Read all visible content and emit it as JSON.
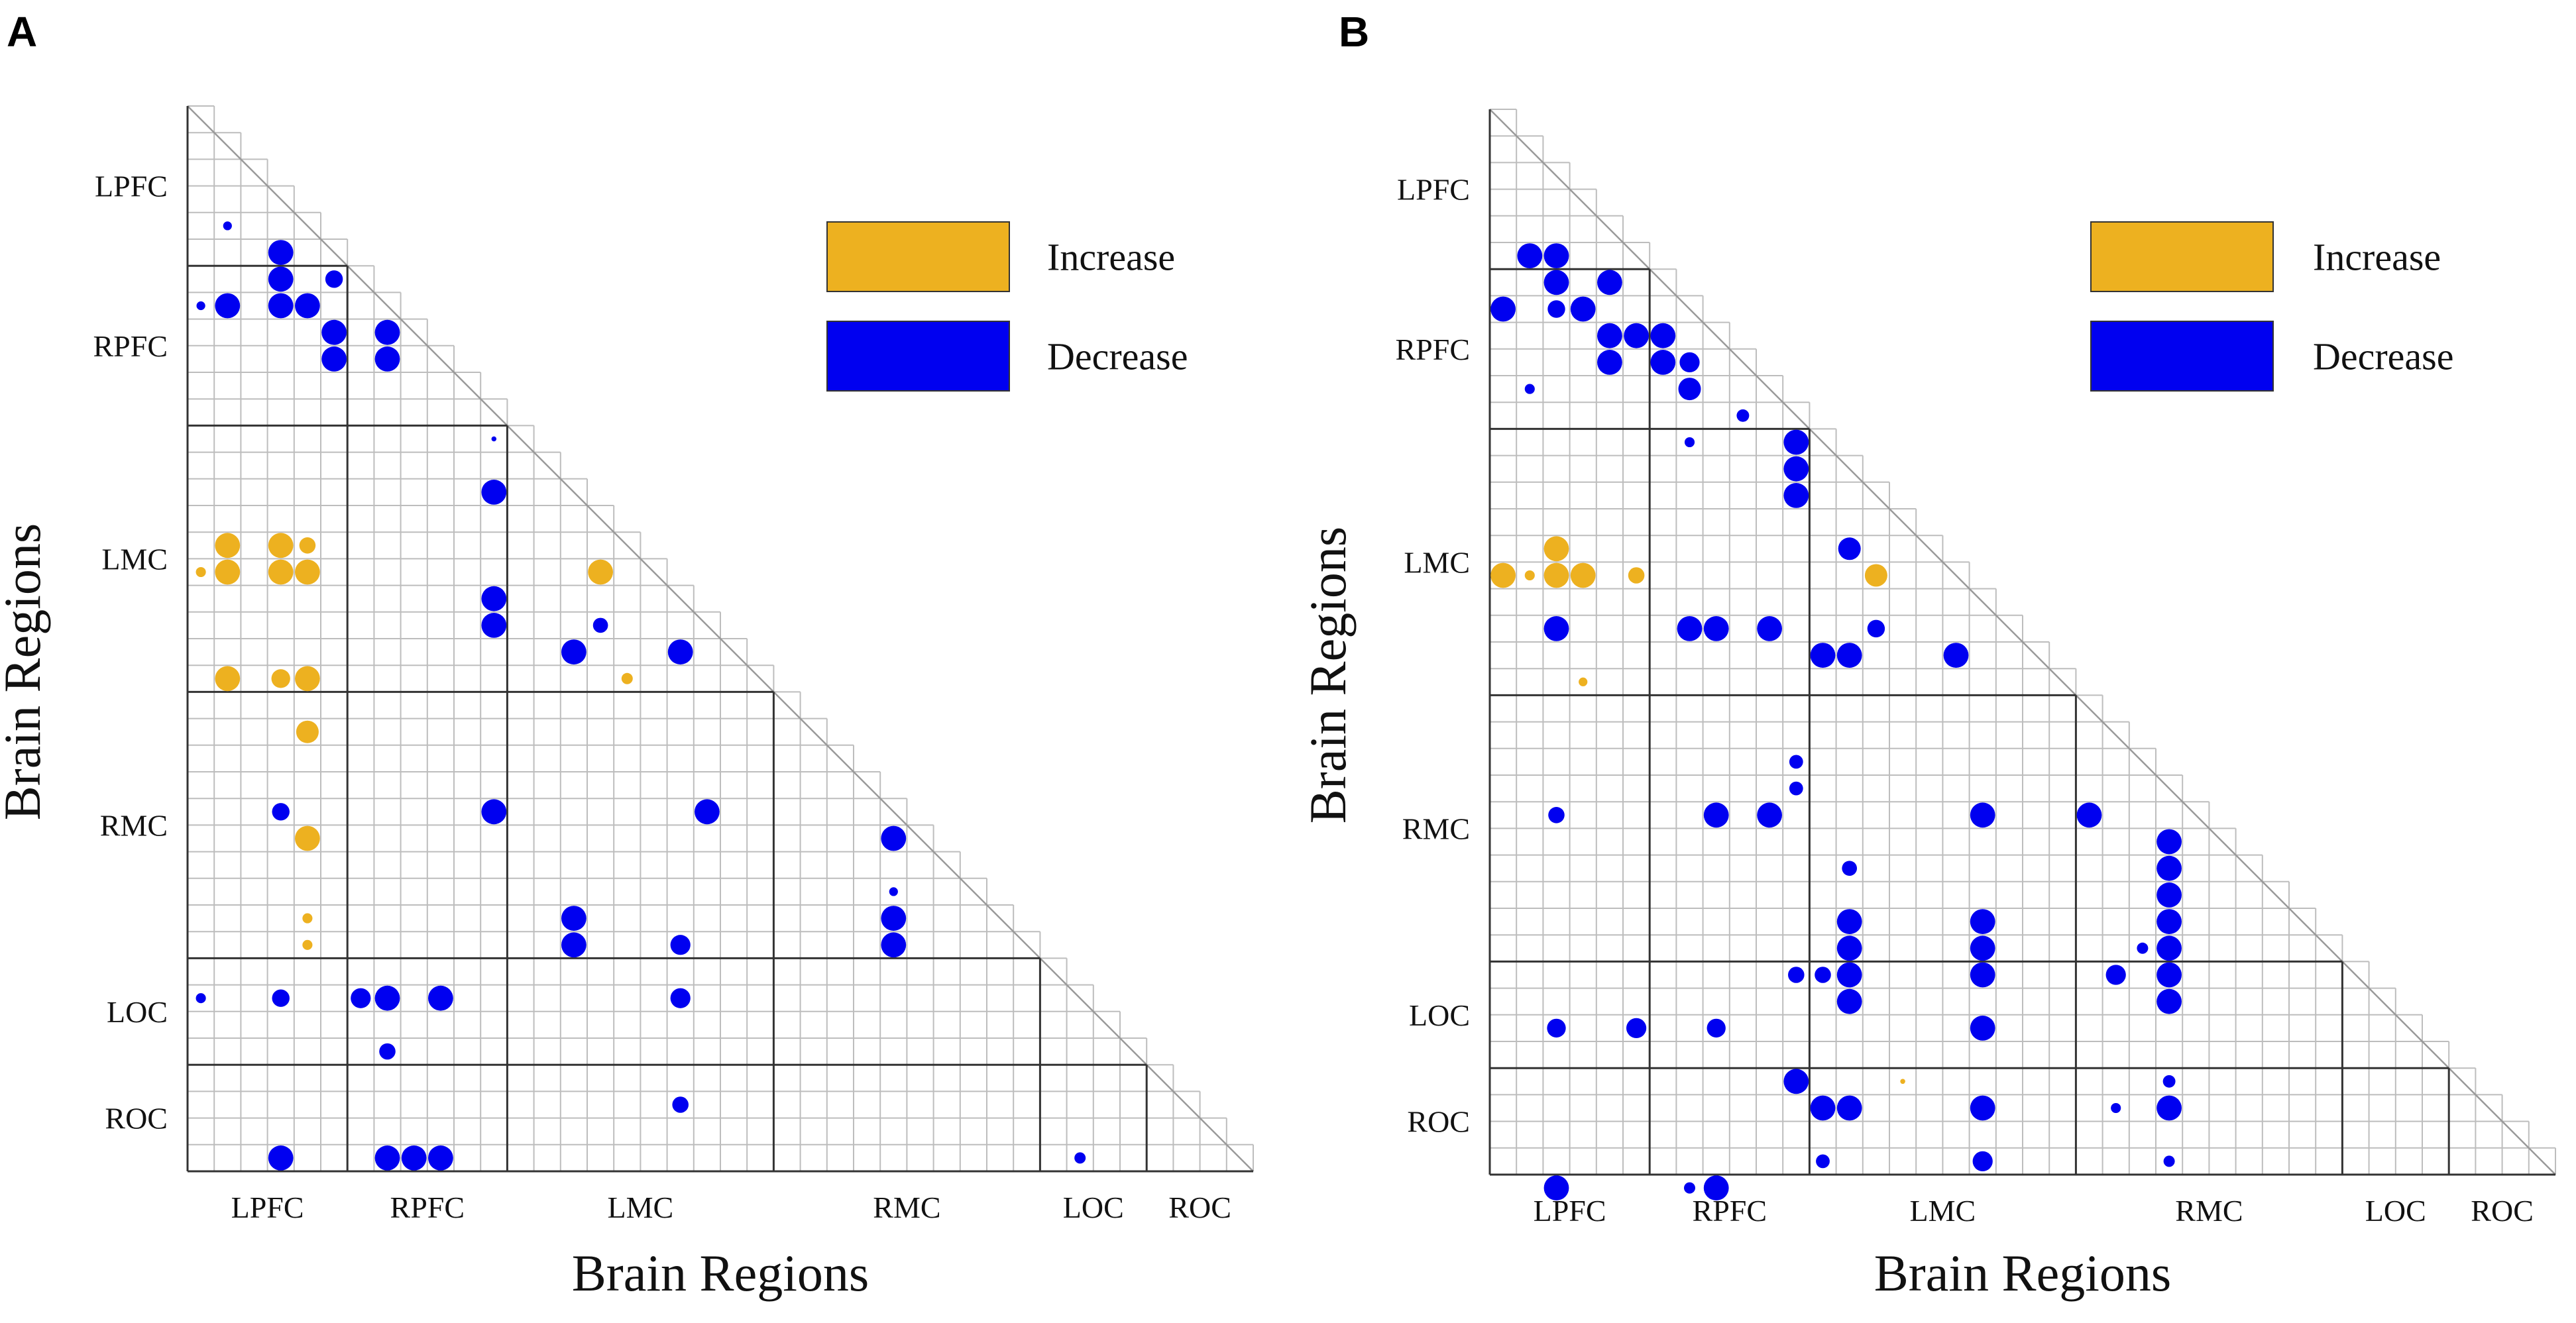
{
  "figure": {
    "colors": {
      "increase": "#EDB120",
      "decrease": "#0000F0",
      "grid": "#BDBDBD",
      "divider": "#333333"
    }
  },
  "chart_data": [
    {
      "type": "heatmap",
      "panel": "A",
      "xlabel": "Brain Regions",
      "ylabel": "Brain Regions",
      "n": 40,
      "regions": [
        {
          "name": "LPFC",
          "start": 0,
          "end": 6
        },
        {
          "name": "RPFC",
          "start": 6,
          "end": 12
        },
        {
          "name": "LMC",
          "start": 12,
          "end": 22
        },
        {
          "name": "RMC",
          "start": 22,
          "end": 32
        },
        {
          "name": "LOC",
          "start": 32,
          "end": 36
        },
        {
          "name": "ROC",
          "start": 36,
          "end": 40
        }
      ],
      "legend": [
        {
          "label": "Increase",
          "key": "increase"
        },
        {
          "label": "Decrease",
          "key": "decrease"
        }
      ],
      "points": [
        {
          "row": 4,
          "col": 1,
          "size": 0.35,
          "kind": "decrease"
        },
        {
          "row": 5,
          "col": 3,
          "size": 1,
          "kind": "decrease"
        },
        {
          "row": 6,
          "col": 3,
          "size": 1,
          "kind": "decrease"
        },
        {
          "row": 6,
          "col": 5,
          "size": 0.7,
          "kind": "decrease"
        },
        {
          "row": 7,
          "col": 0,
          "size": 0.35,
          "kind": "decrease"
        },
        {
          "row": 7,
          "col": 1,
          "size": 1,
          "kind": "decrease"
        },
        {
          "row": 7,
          "col": 3,
          "size": 1,
          "kind": "decrease"
        },
        {
          "row": 7,
          "col": 4,
          "size": 1,
          "kind": "decrease"
        },
        {
          "row": 8,
          "col": 5,
          "size": 1,
          "kind": "decrease"
        },
        {
          "row": 8,
          "col": 7,
          "size": 1,
          "kind": "decrease"
        },
        {
          "row": 9,
          "col": 5,
          "size": 1,
          "kind": "decrease"
        },
        {
          "row": 9,
          "col": 7,
          "size": 1,
          "kind": "decrease"
        },
        {
          "row": 12,
          "col": 11,
          "size": 0.2,
          "kind": "decrease"
        },
        {
          "row": 14,
          "col": 11,
          "size": 1,
          "kind": "decrease"
        },
        {
          "row": 16,
          "col": 1,
          "size": 1,
          "kind": "increase"
        },
        {
          "row": 16,
          "col": 3,
          "size": 1,
          "kind": "increase"
        },
        {
          "row": 16,
          "col": 4,
          "size": 0.65,
          "kind": "increase"
        },
        {
          "row": 17,
          "col": 0,
          "size": 0.4,
          "kind": "increase"
        },
        {
          "row": 17,
          "col": 1,
          "size": 1,
          "kind": "increase"
        },
        {
          "row": 17,
          "col": 3,
          "size": 1,
          "kind": "increase"
        },
        {
          "row": 17,
          "col": 4,
          "size": 1,
          "kind": "increase"
        },
        {
          "row": 17,
          "col": 15,
          "size": 1,
          "kind": "increase"
        },
        {
          "row": 18,
          "col": 11,
          "size": 1,
          "kind": "decrease"
        },
        {
          "row": 19,
          "col": 11,
          "size": 1,
          "kind": "decrease"
        },
        {
          "row": 19,
          "col": 15,
          "size": 0.6,
          "kind": "decrease"
        },
        {
          "row": 20,
          "col": 14,
          "size": 1,
          "kind": "decrease"
        },
        {
          "row": 20,
          "col": 18,
          "size": 1,
          "kind": "decrease"
        },
        {
          "row": 21,
          "col": 1,
          "size": 1,
          "kind": "increase"
        },
        {
          "row": 21,
          "col": 3,
          "size": 0.75,
          "kind": "increase"
        },
        {
          "row": 21,
          "col": 4,
          "size": 1,
          "kind": "increase"
        },
        {
          "row": 21,
          "col": 16,
          "size": 0.45,
          "kind": "increase"
        },
        {
          "row": 23,
          "col": 4,
          "size": 0.9,
          "kind": "increase"
        },
        {
          "row": 26,
          "col": 3,
          "size": 0.7,
          "kind": "decrease"
        },
        {
          "row": 26,
          "col": 11,
          "size": 1,
          "kind": "decrease"
        },
        {
          "row": 26,
          "col": 19,
          "size": 1,
          "kind": "decrease"
        },
        {
          "row": 27,
          "col": 4,
          "size": 1,
          "kind": "increase"
        },
        {
          "row": 27,
          "col": 26,
          "size": 1,
          "kind": "decrease"
        },
        {
          "row": 29,
          "col": 26,
          "size": 0.35,
          "kind": "decrease"
        },
        {
          "row": 30,
          "col": 4,
          "size": 0.4,
          "kind": "increase"
        },
        {
          "row": 30,
          "col": 14,
          "size": 1,
          "kind": "decrease"
        },
        {
          "row": 30,
          "col": 26,
          "size": 1,
          "kind": "decrease"
        },
        {
          "row": 31,
          "col": 4,
          "size": 0.4,
          "kind": "increase"
        },
        {
          "row": 31,
          "col": 14,
          "size": 1,
          "kind": "decrease"
        },
        {
          "row": 31,
          "col": 18,
          "size": 0.8,
          "kind": "decrease"
        },
        {
          "row": 31,
          "col": 26,
          "size": 1,
          "kind": "decrease"
        },
        {
          "row": 33,
          "col": 0,
          "size": 0.4,
          "kind": "decrease"
        },
        {
          "row": 33,
          "col": 3,
          "size": 0.7,
          "kind": "decrease"
        },
        {
          "row": 33,
          "col": 6,
          "size": 0.8,
          "kind": "decrease"
        },
        {
          "row": 33,
          "col": 7,
          "size": 1,
          "kind": "decrease"
        },
        {
          "row": 33,
          "col": 9,
          "size": 1,
          "kind": "decrease"
        },
        {
          "row": 33,
          "col": 18,
          "size": 0.8,
          "kind": "decrease"
        },
        {
          "row": 35,
          "col": 7,
          "size": 0.65,
          "kind": "decrease"
        },
        {
          "row": 37,
          "col": 18,
          "size": 0.65,
          "kind": "decrease"
        },
        {
          "row": 39,
          "col": 3,
          "size": 1,
          "kind": "decrease"
        },
        {
          "row": 39,
          "col": 7,
          "size": 1,
          "kind": "decrease"
        },
        {
          "row": 39,
          "col": 8,
          "size": 1,
          "kind": "decrease"
        },
        {
          "row": 39,
          "col": 9,
          "size": 1,
          "kind": "decrease"
        },
        {
          "row": 39,
          "col": 33,
          "size": 0.45,
          "kind": "decrease"
        }
      ]
    },
    {
      "type": "heatmap",
      "panel": "B",
      "xlabel": "Brain Regions",
      "ylabel": "Brain Regions",
      "n": 40,
      "regions": [
        {
          "name": "LPFC",
          "start": 0,
          "end": 6
        },
        {
          "name": "RPFC",
          "start": 6,
          "end": 12
        },
        {
          "name": "LMC",
          "start": 12,
          "end": 22
        },
        {
          "name": "RMC",
          "start": 22,
          "end": 32
        },
        {
          "name": "LOC",
          "start": 32,
          "end": 36
        },
        {
          "name": "ROC",
          "start": 36,
          "end": 40
        }
      ],
      "legend": [
        {
          "label": "Increase",
          "key": "increase"
        },
        {
          "label": "Decrease",
          "key": "decrease"
        }
      ],
      "points": [
        {
          "row": 5,
          "col": 1,
          "size": 1,
          "kind": "decrease"
        },
        {
          "row": 5,
          "col": 2,
          "size": 1,
          "kind": "decrease"
        },
        {
          "row": 6,
          "col": 2,
          "size": 1,
          "kind": "decrease"
        },
        {
          "row": 6,
          "col": 4,
          "size": 1,
          "kind": "decrease"
        },
        {
          "row": 7,
          "col": 0,
          "size": 1,
          "kind": "decrease"
        },
        {
          "row": 7,
          "col": 2,
          "size": 0.7,
          "kind": "decrease"
        },
        {
          "row": 7,
          "col": 3,
          "size": 1,
          "kind": "decrease"
        },
        {
          "row": 8,
          "col": 4,
          "size": 1,
          "kind": "decrease"
        },
        {
          "row": 8,
          "col": 5,
          "size": 1,
          "kind": "decrease"
        },
        {
          "row": 8,
          "col": 6,
          "size": 1,
          "kind": "decrease"
        },
        {
          "row": 9,
          "col": 4,
          "size": 1,
          "kind": "decrease"
        },
        {
          "row": 9,
          "col": 6,
          "size": 1,
          "kind": "decrease"
        },
        {
          "row": 9,
          "col": 7,
          "size": 0.8,
          "kind": "decrease"
        },
        {
          "row": 10,
          "col": 1,
          "size": 0.4,
          "kind": "decrease"
        },
        {
          "row": 10,
          "col": 7,
          "size": 0.9,
          "kind": "decrease"
        },
        {
          "row": 11,
          "col": 9,
          "size": 0.5,
          "kind": "decrease"
        },
        {
          "row": 12,
          "col": 7,
          "size": 0.4,
          "kind": "decrease"
        },
        {
          "row": 12,
          "col": 11,
          "size": 1,
          "kind": "decrease"
        },
        {
          "row": 13,
          "col": 11,
          "size": 1,
          "kind": "decrease"
        },
        {
          "row": 14,
          "col": 11,
          "size": 1,
          "kind": "decrease"
        },
        {
          "row": 16,
          "col": 2,
          "size": 1,
          "kind": "increase"
        },
        {
          "row": 16,
          "col": 13,
          "size": 0.9,
          "kind": "decrease"
        },
        {
          "row": 17,
          "col": 0,
          "size": 1,
          "kind": "increase"
        },
        {
          "row": 17,
          "col": 1,
          "size": 0.4,
          "kind": "increase"
        },
        {
          "row": 17,
          "col": 2,
          "size": 1,
          "kind": "increase"
        },
        {
          "row": 17,
          "col": 3,
          "size": 1,
          "kind": "increase"
        },
        {
          "row": 17,
          "col": 5,
          "size": 0.65,
          "kind": "increase"
        },
        {
          "row": 17,
          "col": 14,
          "size": 0.9,
          "kind": "increase"
        },
        {
          "row": 19,
          "col": 2,
          "size": 1,
          "kind": "decrease"
        },
        {
          "row": 19,
          "col": 7,
          "size": 1,
          "kind": "decrease"
        },
        {
          "row": 19,
          "col": 8,
          "size": 1,
          "kind": "decrease"
        },
        {
          "row": 19,
          "col": 10,
          "size": 1,
          "kind": "decrease"
        },
        {
          "row": 19,
          "col": 14,
          "size": 0.7,
          "kind": "decrease"
        },
        {
          "row": 20,
          "col": 12,
          "size": 1,
          "kind": "decrease"
        },
        {
          "row": 20,
          "col": 13,
          "size": 1,
          "kind": "decrease"
        },
        {
          "row": 20,
          "col": 17,
          "size": 1,
          "kind": "decrease"
        },
        {
          "row": 21,
          "col": 3,
          "size": 0.35,
          "kind": "increase"
        },
        {
          "row": 24,
          "col": 11,
          "size": 0.55,
          "kind": "decrease"
        },
        {
          "row": 25,
          "col": 11,
          "size": 0.55,
          "kind": "decrease"
        },
        {
          "row": 26,
          "col": 2,
          "size": 0.65,
          "kind": "decrease"
        },
        {
          "row": 26,
          "col": 8,
          "size": 1,
          "kind": "decrease"
        },
        {
          "row": 26,
          "col": 10,
          "size": 1,
          "kind": "decrease"
        },
        {
          "row": 26,
          "col": 18,
          "size": 1,
          "kind": "decrease"
        },
        {
          "row": 26,
          "col": 22,
          "size": 1,
          "kind": "decrease"
        },
        {
          "row": 27,
          "col": 25,
          "size": 1,
          "kind": "decrease"
        },
        {
          "row": 28,
          "col": 13,
          "size": 0.6,
          "kind": "decrease"
        },
        {
          "row": 28,
          "col": 25,
          "size": 1,
          "kind": "decrease"
        },
        {
          "row": 29,
          "col": 25,
          "size": 1,
          "kind": "decrease"
        },
        {
          "row": 30,
          "col": 13,
          "size": 1,
          "kind": "decrease"
        },
        {
          "row": 30,
          "col": 18,
          "size": 1,
          "kind": "decrease"
        },
        {
          "row": 30,
          "col": 25,
          "size": 1,
          "kind": "decrease"
        },
        {
          "row": 31,
          "col": 13,
          "size": 1,
          "kind": "decrease"
        },
        {
          "row": 31,
          "col": 18,
          "size": 1,
          "kind": "decrease"
        },
        {
          "row": 31,
          "col": 25,
          "size": 1,
          "kind": "decrease"
        },
        {
          "row": 31,
          "col": 24,
          "size": 0.45,
          "kind": "decrease"
        },
        {
          "row": 32,
          "col": 11,
          "size": 0.65,
          "kind": "decrease"
        },
        {
          "row": 32,
          "col": 12,
          "size": 0.65,
          "kind": "decrease"
        },
        {
          "row": 32,
          "col": 13,
          "size": 1,
          "kind": "decrease"
        },
        {
          "row": 32,
          "col": 18,
          "size": 1,
          "kind": "decrease"
        },
        {
          "row": 32,
          "col": 23,
          "size": 0.8,
          "kind": "decrease"
        },
        {
          "row": 32,
          "col": 25,
          "size": 1,
          "kind": "decrease"
        },
        {
          "row": 33,
          "col": 13,
          "size": 1,
          "kind": "decrease"
        },
        {
          "row": 33,
          "col": 25,
          "size": 1,
          "kind": "decrease"
        },
        {
          "row": 34,
          "col": 2,
          "size": 0.75,
          "kind": "decrease"
        },
        {
          "row": 34,
          "col": 5,
          "size": 0.8,
          "kind": "decrease"
        },
        {
          "row": 34,
          "col": 8,
          "size": 0.75,
          "kind": "decrease"
        },
        {
          "row": 34,
          "col": 18,
          "size": 1,
          "kind": "decrease"
        },
        {
          "row": 36,
          "col": 11,
          "size": 1,
          "kind": "decrease"
        },
        {
          "row": 36,
          "col": 15,
          "size": 0.2,
          "kind": "increase"
        },
        {
          "row": 36,
          "col": 25,
          "size": 0.5,
          "kind": "decrease"
        },
        {
          "row": 37,
          "col": 12,
          "size": 1,
          "kind": "decrease"
        },
        {
          "row": 37,
          "col": 13,
          "size": 1,
          "kind": "decrease"
        },
        {
          "row": 37,
          "col": 18,
          "size": 1,
          "kind": "decrease"
        },
        {
          "row": 37,
          "col": 23,
          "size": 0.4,
          "kind": "decrease"
        },
        {
          "row": 37,
          "col": 25,
          "size": 1,
          "kind": "decrease"
        },
        {
          "row": 39,
          "col": 12,
          "size": 0.55,
          "kind": "decrease"
        },
        {
          "row": 39,
          "col": 18,
          "size": 0.8,
          "kind": "decrease"
        },
        {
          "row": 39,
          "col": 25,
          "size": 0.45,
          "kind": "decrease"
        },
        {
          "row": 40,
          "col": 2,
          "size": 1,
          "kind": "decrease"
        },
        {
          "row": 40,
          "col": 7,
          "size": 0.45,
          "kind": "decrease"
        },
        {
          "row": 40,
          "col": 8,
          "size": 1,
          "kind": "decrease"
        }
      ]
    }
  ]
}
